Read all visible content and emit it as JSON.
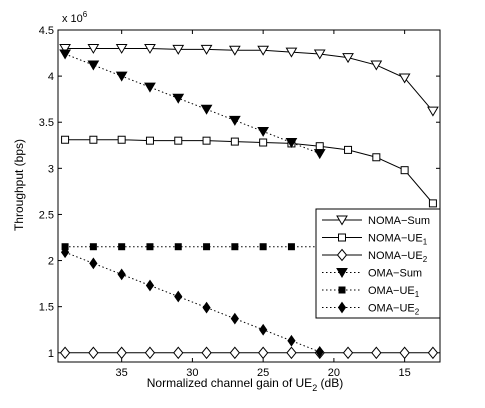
{
  "chart_data": {
    "type": "line",
    "xlabel_prefix": "Normalized channel gain of UE",
    "xlabel_sub": "2",
    "xlabel_suffix": " (dB)",
    "ylabel": "Throughput (bps)",
    "y_multiplier_base": "x 10",
    "y_multiplier_exp": "6",
    "xlim": [
      39.5,
      12.5
    ],
    "ylim": [
      0.9,
      4.5
    ],
    "x_reversed": true,
    "grid": false,
    "legend_position": "right",
    "xticks": [
      35,
      30,
      25,
      20,
      15
    ],
    "xtick_labels": [
      "35",
      "30",
      "25",
      "20",
      "15"
    ],
    "yticks": [
      1,
      1.5,
      2,
      2.5,
      3,
      3.5,
      4,
      4.5
    ],
    "ytick_labels": [
      "1",
      "1.5",
      "2",
      "2.5",
      "3",
      "3.5",
      "4",
      "4.5"
    ],
    "series": [
      {
        "name": "NOMA−Sum",
        "name_sub": "",
        "marker": "triangle-down-open",
        "dash": "solid",
        "x": [
          39,
          37,
          35,
          33,
          31,
          29,
          27,
          25,
          23,
          21,
          19,
          17,
          15,
          13
        ],
        "y": [
          4.3,
          4.3,
          4.3,
          4.3,
          4.29,
          4.29,
          4.28,
          4.28,
          4.26,
          4.24,
          4.2,
          4.12,
          3.98,
          3.62
        ]
      },
      {
        "name": "NOMA−UE",
        "name_sub": "1",
        "marker": "square-open",
        "dash": "solid",
        "x": [
          39,
          37,
          35,
          33,
          31,
          29,
          27,
          25,
          23,
          21,
          19,
          17,
          15,
          13
        ],
        "y": [
          3.31,
          3.31,
          3.31,
          3.3,
          3.3,
          3.3,
          3.29,
          3.28,
          3.27,
          3.24,
          3.2,
          3.12,
          2.98,
          2.62
        ]
      },
      {
        "name": "NOMA−UE",
        "name_sub": "2",
        "marker": "diamond-open",
        "dash": "solid",
        "x": [
          39,
          37,
          35,
          33,
          31,
          29,
          27,
          25,
          23,
          21,
          19,
          17,
          15,
          13
        ],
        "y": [
          1.0,
          1.0,
          1.0,
          1.0,
          1.0,
          1.0,
          1.0,
          1.0,
          1.0,
          1.0,
          1.0,
          1.0,
          1.0,
          1.0
        ]
      },
      {
        "name": "OMA−Sum",
        "name_sub": "",
        "marker": "triangle-down-filled",
        "dash": "dotted",
        "x": [
          39,
          37,
          35,
          33,
          31,
          29,
          27,
          25,
          23,
          21
        ],
        "y": [
          4.24,
          4.12,
          4.0,
          3.88,
          3.76,
          3.64,
          3.52,
          3.4,
          3.28,
          3.16
        ]
      },
      {
        "name": "OMA−UE",
        "name_sub": "1",
        "marker": "square-filled",
        "dash": "dotted",
        "x": [
          39,
          37,
          35,
          33,
          31,
          29,
          27,
          25,
          23,
          21
        ],
        "y": [
          2.15,
          2.15,
          2.15,
          2.15,
          2.15,
          2.15,
          2.15,
          2.15,
          2.15,
          2.15
        ]
      },
      {
        "name": "OMA−UE",
        "name_sub": "2",
        "marker": "diamond-filled",
        "dash": "dotted",
        "x": [
          39,
          37,
          35,
          33,
          31,
          29,
          27,
          25,
          23,
          21
        ],
        "y": [
          2.09,
          1.97,
          1.85,
          1.73,
          1.61,
          1.49,
          1.37,
          1.25,
          1.13,
          1.01
        ]
      }
    ]
  }
}
